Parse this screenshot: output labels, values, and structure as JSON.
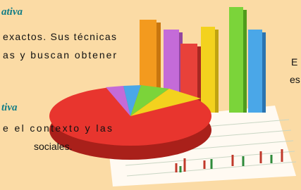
{
  "slide": {
    "sections": [
      {
        "heading": "ativa",
        "lines": [
          "exactos. Sus técnicas",
          "as y buscan obtener"
        ]
      },
      {
        "heading": "tiva",
        "lines": [
          "e el contexto y las",
          "sociales."
        ]
      }
    ],
    "side_text": [
      "E",
      "es"
    ]
  }
}
